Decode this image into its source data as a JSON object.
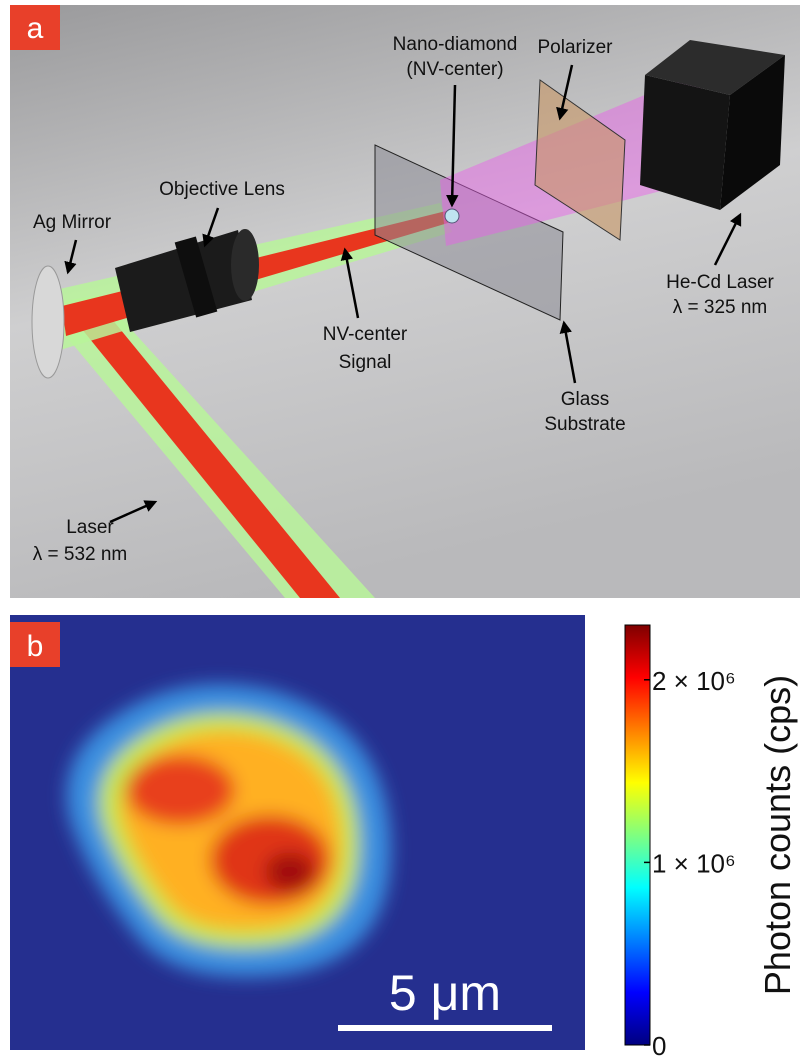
{
  "panel_a": {
    "label": "a",
    "nano_diamond": [
      "Nano-diamond",
      "(NV-center)"
    ],
    "polarizer": "Polarizer",
    "objective_lens": "Objective Lens",
    "ag_mirror": "Ag Mirror",
    "he_cd_laser": [
      "He-Cd Laser",
      "λ = 325 nm"
    ],
    "nv_signal": [
      "NV-center",
      "Signal"
    ],
    "glass_substrate": [
      "Glass",
      "Substrate"
    ],
    "laser": [
      "Laser",
      "λ = 532 nm"
    ]
  },
  "panel_b": {
    "label": "b",
    "scale_bar": "5 μm",
    "colorbar": {
      "title": "Photon counts (cps)",
      "lim": [
        0,
        2300000
      ],
      "ticks": [
        0,
        {
          "value": 1000000,
          "label": "1 × 10⁶"
        },
        {
          "value": 2000000,
          "label": "2 × 10⁶"
        }
      ]
    }
  }
}
